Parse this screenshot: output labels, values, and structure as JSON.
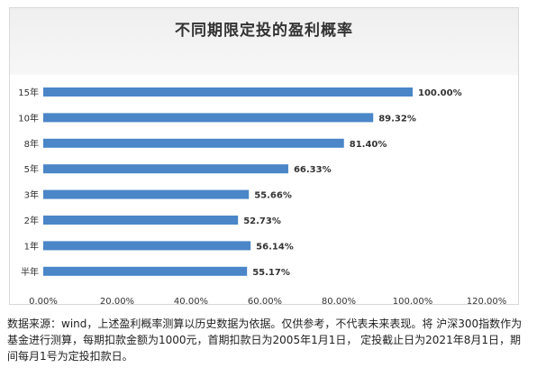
{
  "chart_data": {
    "type": "bar",
    "orientation": "horizontal",
    "title": "不同期限定投的盈利概率",
    "categories": [
      "15年",
      "10年",
      "8年",
      "5年",
      "3年",
      "2年",
      "1年",
      "半年"
    ],
    "values": [
      100.0,
      89.32,
      81.4,
      66.33,
      55.66,
      52.73,
      56.14,
      55.17
    ],
    "data_labels": [
      "100.00%",
      "89.32%",
      "81.40%",
      "66.33%",
      "55.66%",
      "52.73%",
      "56.14%",
      "55.17%"
    ],
    "x_ticks": [
      "0.00%",
      "20.00%",
      "40.00%",
      "60.00%",
      "80.00%",
      "100.00%",
      "120.00%"
    ],
    "xlim": [
      0,
      120
    ],
    "grid": false,
    "legend": "none",
    "bar_color": "#4a86c8"
  },
  "footnote": "数据来源：wind，上述盈利概率测算以历史数据为依据。仅供参考，不代表未来表现。将 沪深300指数作为基金进行测算，每期扣款金额为1000元，首期扣款日为2005年1月1日， 定投截止日为2021年8月1日，期间每月1号为定投扣款日。"
}
